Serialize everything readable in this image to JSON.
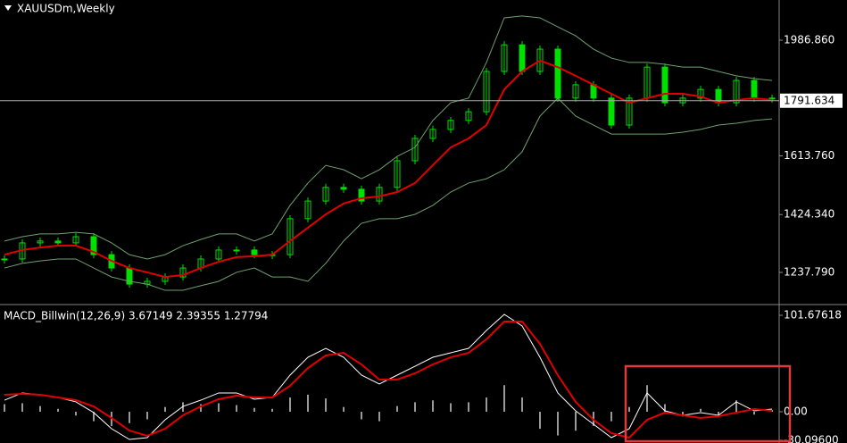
{
  "chart_data": [
    {
      "type": "candlestick",
      "title": "XAUUSDm,Weekly",
      "close": [
        1281,
        1333,
        1339,
        1333,
        1353,
        1295,
        1252,
        1200,
        1209,
        1223,
        1252,
        1281,
        1310,
        1310,
        1295,
        1295,
        1411,
        1468,
        1512,
        1506,
        1468,
        1512,
        1598,
        1670,
        1699,
        1728,
        1756,
        1886,
        1972,
        1886,
        1958,
        1800,
        1843,
        1800,
        1713,
        1800,
        1900,
        1785,
        1800,
        1828,
        1785,
        1857,
        1800,
        1800
      ],
      "color": "#00e000",
      "series": [
        {
          "color": "#e00000",
          "values": [
            1295,
            1310,
            1318,
            1324,
            1324,
            1304,
            1275,
            1252,
            1238,
            1223,
            1229,
            1252,
            1272,
            1287,
            1290,
            1295,
            1339,
            1382,
            1425,
            1460,
            1477,
            1483,
            1497,
            1526,
            1584,
            1641,
            1670,
            1713,
            1828,
            1886,
            1921,
            1900,
            1872,
            1843,
            1814,
            1785,
            1800,
            1814,
            1814,
            1805,
            1785,
            1794,
            1800,
            1794
          ]
        },
        {
          "color": "#6f9f6f",
          "values": [
            1339,
            1353,
            1362,
            1362,
            1367,
            1362,
            1333,
            1295,
            1281,
            1295,
            1324,
            1344,
            1362,
            1362,
            1339,
            1362,
            1454,
            1526,
            1583,
            1569,
            1540,
            1569,
            1612,
            1641,
            1728,
            1785,
            1800,
            1915,
            2059,
            2065,
            2059,
            2030,
            2001,
            1958,
            1929,
            1915,
            1915,
            1909,
            1900,
            1900,
            1886,
            1872,
            1863,
            1857
          ]
        },
        {
          "color": "#6f9f6f",
          "values": [
            1252,
            1267,
            1275,
            1281,
            1281,
            1252,
            1223,
            1209,
            1200,
            1180,
            1180,
            1195,
            1209,
            1238,
            1252,
            1223,
            1223,
            1209,
            1267,
            1339,
            1396,
            1411,
            1411,
            1425,
            1454,
            1497,
            1526,
            1540,
            1569,
            1627,
            1742,
            1800,
            1742,
            1713,
            1684,
            1684,
            1684,
            1684,
            1690,
            1699,
            1713,
            1719,
            1728,
            1733
          ]
        }
      ],
      "current_price": 1791.634,
      "ylim": [
        1136.9,
        2116.5
      ],
      "yticks": [
        {
          "value": 1986.86,
          "label": "1986.860"
        },
        {
          "value": 1613.76,
          "label": "1613.760"
        },
        {
          "value": 1424.34,
          "label": "1424.340"
        },
        {
          "value": 1237.79,
          "label": "1237.790"
        }
      ]
    },
    {
      "type": "macd",
      "title": "MACD_Billwin(12,26,9) 3.67149 2.39355 1.27794",
      "histogram": [
        8,
        9,
        6,
        3,
        -4,
        -10,
        -15,
        -12,
        -8,
        5,
        10,
        8,
        9,
        7,
        4,
        3,
        15,
        18,
        14,
        5,
        -8,
        -10,
        6,
        10,
        12,
        9,
        10,
        15,
        28,
        15,
        -18,
        -25,
        -20,
        -15,
        -10,
        5,
        28,
        8,
        -5,
        3,
        -4,
        12,
        -3,
        2
      ],
      "histogram_color": "#cccccc",
      "series": [
        {
          "color": "#ffffff",
          "values": [
            12.2,
            19.8,
            17.9,
            15.1,
            10.4,
            -0.9,
            -17.9,
            -29.2,
            -27.3,
            -8.5,
            5.6,
            12.2,
            19.8,
            19.8,
            13.2,
            15.1,
            38.6,
            57.4,
            66.8,
            57.4,
            38.6,
            29.2,
            38.6,
            48.0,
            57.4,
            62.1,
            66.8,
            85.7,
            102.6,
            90.4,
            57.4,
            19.8,
            0.9,
            -13.2,
            -27.3,
            -17.9,
            19.8,
            0.9,
            -3.8,
            -0.9,
            -3.8,
            10.4,
            0.9,
            2.8
          ]
        },
        {
          "color": "#e00000",
          "values": [
            17.9,
            18.8,
            17.9,
            15.1,
            12.2,
            5.6,
            -6.6,
            -19.8,
            -25.4,
            -17.9,
            -3.8,
            5.6,
            13.2,
            16.9,
            15.1,
            15.1,
            27.3,
            46.1,
            59.3,
            62.1,
            49.9,
            33.9,
            33.9,
            40.5,
            49.9,
            57.4,
            62.1,
            76.3,
            95.1,
            95.1,
            71.6,
            38.6,
            10.4,
            -8.5,
            -22.6,
            -27.3,
            -8.5,
            -0.9,
            -3.8,
            -6.6,
            -4.7,
            -0.9,
            2.8,
            0.9
          ]
        }
      ],
      "ylim": [
        -32.96,
        111.09
      ],
      "yticks": [
        {
          "value": 101.67618,
          "label": "101.67618"
        },
        {
          "value": 0,
          "label": "0.00"
        },
        {
          "value": -30.096,
          "label": "-30.09600"
        }
      ]
    }
  ]
}
